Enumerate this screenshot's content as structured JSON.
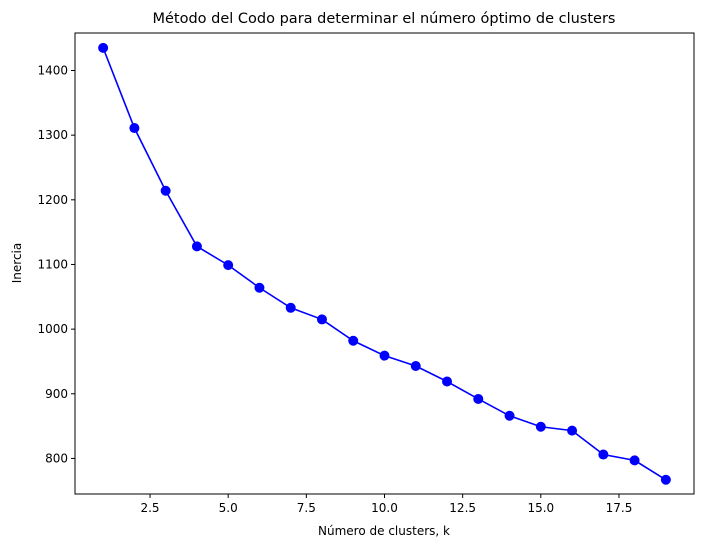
{
  "chart_data": {
    "type": "line",
    "title": "Método del Codo para determinar el número óptimo de clusters",
    "xlabel": "Número de clusters, k",
    "ylabel": "Inercia",
    "xlim": [
      0.1,
      19.9
    ],
    "ylim": [
      745,
      1458
    ],
    "xticks": [
      2.5,
      5.0,
      7.5,
      10.0,
      12.5,
      15.0,
      17.5
    ],
    "xtick_labels": [
      "2.5",
      "5.0",
      "7.5",
      "10.0",
      "12.5",
      "15.0",
      "17.5"
    ],
    "yticks": [
      800,
      900,
      1000,
      1100,
      1200,
      1300,
      1400
    ],
    "ytick_labels": [
      "800",
      "900",
      "1000",
      "1100",
      "1200",
      "1300",
      "1400"
    ],
    "grid": false,
    "color": "#0000ff",
    "marker": "circle",
    "series": [
      {
        "x": [
          1,
          2,
          3,
          4,
          5,
          6,
          7,
          8,
          9,
          10,
          11,
          12,
          13,
          14,
          15,
          16,
          17,
          18,
          19
        ],
        "values": [
          1435,
          1311,
          1214,
          1128,
          1099,
          1064,
          1033,
          1015,
          982,
          959,
          943,
          919,
          892,
          866,
          849,
          843,
          806,
          797,
          767
        ]
      }
    ]
  }
}
